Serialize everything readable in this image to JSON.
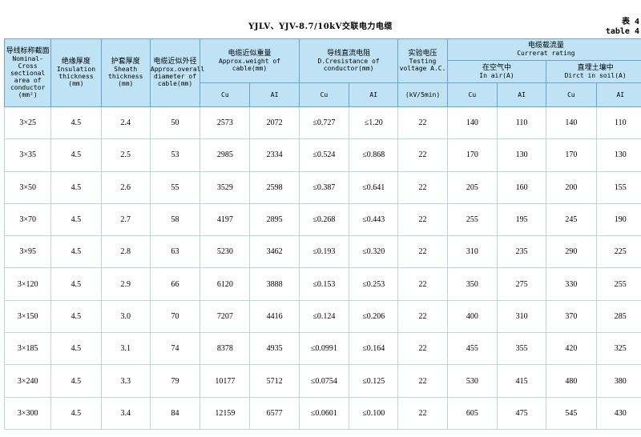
{
  "title": "YJLV、YJV-8.7/10kV交联电力电缆",
  "table_no": {
    "cn": "表 4",
    "en": "table 4"
  },
  "headers": {
    "section": {
      "cn": "导线标称截面",
      "en": "Nominal-Cross sectional area of conductor (mm²)"
    },
    "insulation": {
      "cn": "绝缘厚度",
      "en": "Insulation thickness (mm)"
    },
    "sheath": {
      "cn": "护套厚度",
      "en": "Sheath thickness (mm)"
    },
    "diameter": {
      "cn": "电缆近似外径",
      "en": "Approx.overall diameter of cable(mm)"
    },
    "weight": {
      "cn": "电缆近似重量",
      "en": "Approx.weight of cable(mm)"
    },
    "resistance": {
      "cn": "导线直流电阻",
      "en": "D.Cresistance of conductor(mm)"
    },
    "voltage": {
      "cn": "实验电压",
      "en": "Testing voltage A.C.",
      "unit": "(kV/5min)"
    },
    "current": {
      "cn": "电缆载流量",
      "en": "Currerat rating"
    },
    "air": {
      "cn": "在空气中",
      "en": "In air(A)"
    },
    "soil": {
      "cn": "直埋土壤中",
      "en": "Dirct in soil(A)"
    },
    "cu": "Cu",
    "al": "AI"
  },
  "rows": [
    [
      "3×25",
      "4.5",
      "2.4",
      "50",
      "2573",
      "2072",
      "≤0.727",
      "≤1.20",
      "22",
      "140",
      "110",
      "140",
      "110"
    ],
    [
      "3×35",
      "4.5",
      "2.5",
      "53",
      "2985",
      "2334",
      "≤0.524",
      "≤0.868",
      "22",
      "170",
      "130",
      "170",
      "130"
    ],
    [
      "3×50",
      "4.5",
      "2.6",
      "55",
      "3529",
      "2598",
      "≤0.387",
      "≤0.641",
      "22",
      "205",
      "160",
      "200",
      "155"
    ],
    [
      "3×70",
      "4.5",
      "2.7",
      "58",
      "4197",
      "2895",
      "≤0.268",
      "≤0.443",
      "22",
      "255",
      "195",
      "245",
      "190"
    ],
    [
      "3×95",
      "4.5",
      "2.8",
      "63",
      "5230",
      "3462",
      "≤0.193",
      "≤0.320",
      "22",
      "310",
      "235",
      "290",
      "225"
    ],
    [
      "3×120",
      "4.5",
      "2.9",
      "66",
      "6120",
      "3888",
      "≤0.153",
      "≤0.253",
      "22",
      "350",
      "275",
      "330",
      "255"
    ],
    [
      "3×150",
      "4.5",
      "3.0",
      "70",
      "7207",
      "4416",
      "≤0.124",
      "≤0.206",
      "22",
      "400",
      "310",
      "370",
      "285"
    ],
    [
      "3×185",
      "4.5",
      "3.1",
      "74",
      "8378",
      "4935",
      "≤0.0991",
      "≤0.164",
      "22",
      "455",
      "355",
      "420",
      "325"
    ],
    [
      "3×240",
      "4.5",
      "3.3",
      "79",
      "10177",
      "5712",
      "≤0.0754",
      "≤0.125",
      "22",
      "530",
      "415",
      "480",
      "380"
    ],
    [
      "3×300",
      "4.5",
      "3.4",
      "84",
      "12159",
      "6577",
      "≤0.0601",
      "≤0.100",
      "22",
      "605",
      "475",
      "545",
      "430"
    ]
  ]
}
